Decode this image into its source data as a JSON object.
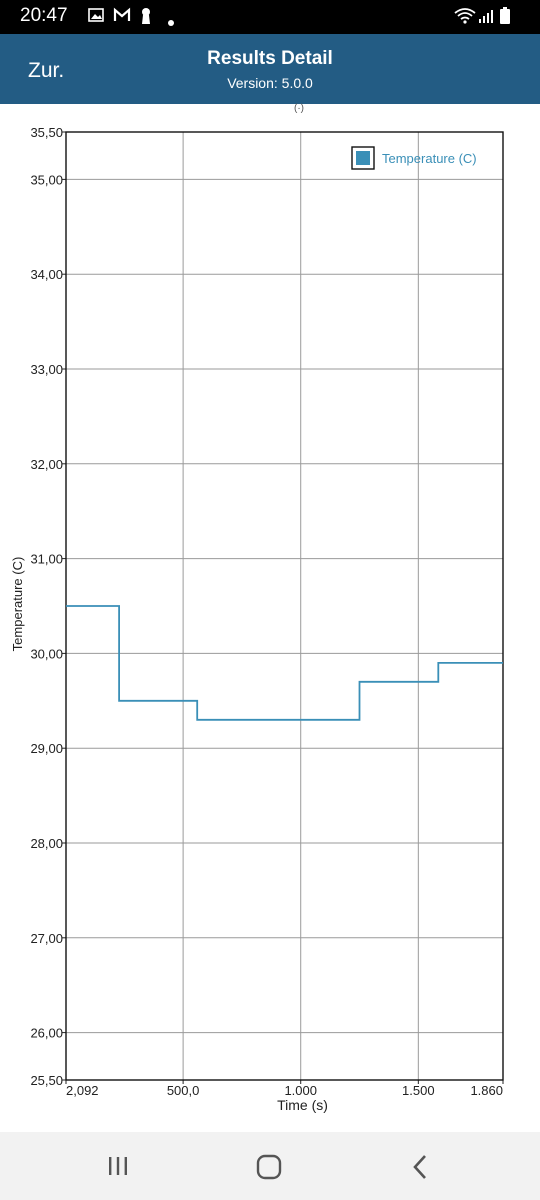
{
  "status_bar": {
    "time": "20:47",
    "left_icons": [
      "image-icon",
      "gmail-icon",
      "keyhole-icon",
      "dot-icon"
    ],
    "right_icons": [
      "wifi-icon",
      "signal-icon",
      "battery-icon"
    ]
  },
  "app_bar": {
    "back_label": "Zur.",
    "title": "Results Detail",
    "subtitle": "Version: 5.0.0",
    "color": "#235c84"
  },
  "chart_data": {
    "type": "line",
    "step": true,
    "xlabel": "Time (s)",
    "ylabel": "Temperature (C)",
    "xlim": [
      2.092,
      1860
    ],
    "ylim": [
      25.5,
      35.5
    ],
    "x_ticks": [
      "2,092",
      "500,0",
      "1.000",
      "1.500",
      "1.860"
    ],
    "x_tick_values": [
      2.092,
      500,
      1000,
      1500,
      1860
    ],
    "y_ticks": [
      "25,50",
      "26,00",
      "27,00",
      "28,00",
      "29,00",
      "30,00",
      "31,00",
      "32,00",
      "33,00",
      "34,00",
      "35,00",
      "35,50"
    ],
    "y_tick_values": [
      25.5,
      26,
      27,
      28,
      29,
      30,
      31,
      32,
      33,
      34,
      35,
      35.5
    ],
    "grid": true,
    "legend_position": "top-right",
    "series": [
      {
        "name": "Temperature (C)",
        "color": "#3a8fb7",
        "x": [
          2.092,
          228,
          228,
          560,
          560,
          1250,
          1250,
          1585,
          1585,
          1860
        ],
        "y": [
          30.5,
          30.5,
          29.5,
          29.5,
          29.3,
          29.3,
          29.7,
          29.7,
          29.9,
          29.9
        ]
      }
    ]
  },
  "nav_bar": {
    "recents_icon": "recents-icon",
    "home_icon": "home-icon",
    "back_icon": "back-icon"
  }
}
